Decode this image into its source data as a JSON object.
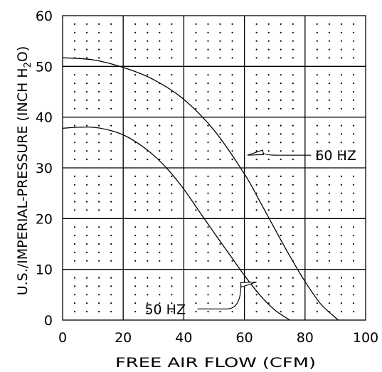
{
  "chart_data": {
    "type": "line",
    "xlabel": "FREE AIR FLOW (CFM)",
    "ylabel": "U.S./IMPERIAL-PRESSURE (INCH H2O)",
    "ylabel_parts": {
      "before": "U.S./IMPERIAL-PRESSURE (INCH H",
      "sub": "2",
      "after": "O)"
    },
    "xlim": [
      0,
      100
    ],
    "ylim": [
      0,
      60
    ],
    "x_ticks": [
      0,
      20,
      40,
      60,
      80,
      100
    ],
    "y_ticks": [
      0,
      10,
      20,
      30,
      40,
      50,
      60
    ],
    "x_tick_labels": [
      "0",
      "20",
      "40",
      "60",
      "80",
      "100"
    ],
    "y_tick_labels": [
      "0",
      "10",
      "20",
      "30",
      "40",
      "50",
      "60"
    ],
    "grid": true,
    "series": [
      {
        "name": "60 HZ",
        "x": [
          0,
          10,
          20,
          30,
          40,
          50,
          60,
          65,
          70,
          75,
          80,
          85,
          90,
          91
        ],
        "y": [
          51.7,
          51.3,
          49.8,
          47.4,
          43.5,
          37.4,
          28.8,
          23.5,
          18.0,
          12.6,
          7.6,
          3.3,
          0.5,
          0
        ]
      },
      {
        "name": "50 HZ",
        "x": [
          0,
          5,
          10,
          15,
          20,
          25,
          30,
          35,
          40,
          45,
          50,
          55,
          60,
          65,
          70,
          75
        ],
        "y": [
          37.8,
          38.0,
          38.0,
          37.5,
          36.5,
          34.8,
          32.5,
          29.5,
          25.8,
          21.5,
          17.2,
          13.0,
          8.8,
          5.0,
          2.0,
          0
        ]
      }
    ],
    "annotations": [
      {
        "series": "60 HZ",
        "text": "60 HZ",
        "point": [
          61,
          32.5
        ],
        "label_at": [
          82,
          32.5
        ]
      },
      {
        "series": "50 HZ",
        "text": "50 HZ",
        "point": [
          64,
          7.5
        ],
        "label_at": [
          44,
          2.2
        ]
      }
    ]
  }
}
